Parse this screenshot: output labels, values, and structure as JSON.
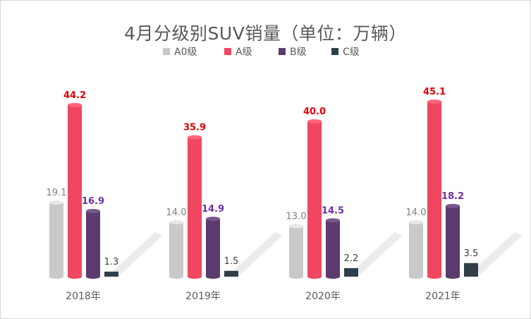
{
  "chart_data": {
    "type": "bar",
    "title": "4月分级别SUV销量（单位：万辆）",
    "categories": [
      "2018年",
      "2019年",
      "2020年",
      "2021年"
    ],
    "series": [
      {
        "name": "A0级",
        "color": "#c9c9c9",
        "label_color": "#7f7f7f",
        "values": [
          19.1,
          14.0,
          13.0,
          14.0
        ]
      },
      {
        "name": "A级",
        "color": "#f0465f",
        "label_color": "#e00000",
        "values": [
          44.2,
          35.9,
          40.0,
          45.1
        ]
      },
      {
        "name": "B级",
        "color": "#5b3a6e",
        "label_color": "#7030a0",
        "values": [
          16.9,
          14.9,
          14.5,
          18.2
        ]
      },
      {
        "name": "C级",
        "color": "#2e3f48",
        "label_color": "#404040",
        "values": [
          1.3,
          1.5,
          2.2,
          3.5
        ]
      }
    ],
    "value_labels": [
      [
        "19.1",
        "44.2",
        "16.9",
        "1.3"
      ],
      [
        "14.0",
        "35.9",
        "14.9",
        "1.5"
      ],
      [
        "13.0",
        "40.0",
        "14.5",
        "2.2"
      ],
      [
        "14.0",
        "45.1",
        "18.2",
        "3.5"
      ]
    ],
    "ylim": [
      0,
      50
    ],
    "legend_position": "top-center",
    "grid": false
  }
}
